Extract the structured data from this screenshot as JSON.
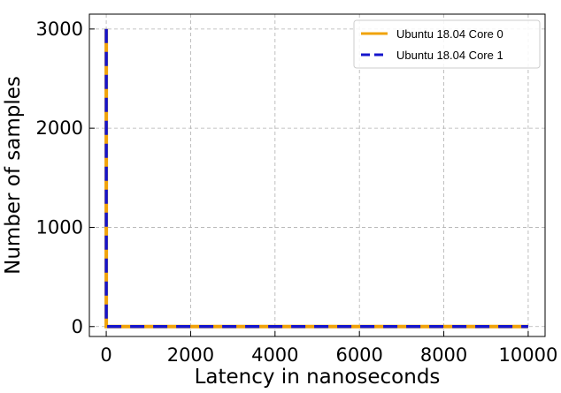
{
  "chart_data": {
    "type": "line",
    "title": "",
    "xlabel": "Latency in nanoseconds",
    "ylabel": "Number of samples",
    "xlim": [
      -400,
      10400
    ],
    "ylim": [
      -100,
      3150
    ],
    "xticks": [
      0,
      2000,
      4000,
      6000,
      8000,
      10000
    ],
    "xtick_labels": [
      "0",
      "2000",
      "4000",
      "6000",
      "8000",
      "10000"
    ],
    "yticks": [
      0,
      1000,
      2000,
      3000
    ],
    "ytick_labels": [
      "0",
      "1000",
      "2000",
      "3000"
    ],
    "grid": true,
    "legend_position": "top-right",
    "series": [
      {
        "name": "Ubuntu 18.04 Core 0",
        "color": "#f0a30a",
        "style": "solid",
        "x": [
          0,
          0,
          50,
          10000
        ],
        "y": [
          3000,
          0,
          0,
          0
        ]
      },
      {
        "name": "Ubuntu 18.04 Core 1",
        "color": "#1515cc",
        "style": "dashed",
        "x": [
          0,
          0,
          50,
          10000
        ],
        "y": [
          3000,
          0,
          0,
          0
        ]
      }
    ]
  }
}
